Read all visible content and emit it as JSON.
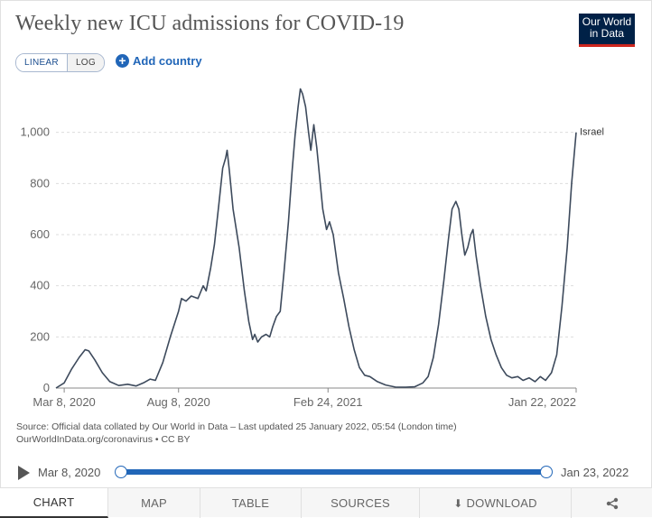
{
  "header": {
    "title": "Weekly new ICU admissions for COVID-19",
    "logo_line1": "Our World",
    "logo_line2": "in Data"
  },
  "controls": {
    "scale_linear": "LINEAR",
    "scale_log": "LOG",
    "scale_selected": "LINEAR",
    "add_country": "Add country"
  },
  "chart_data": {
    "type": "line",
    "title": "Weekly new ICU admissions for COVID-19",
    "xlabel": "",
    "ylabel": "",
    "x_range": [
      "2020-02-26",
      "2022-01-22"
    ],
    "ylim": [
      0,
      1200
    ],
    "yticks": [
      0,
      200,
      400,
      600,
      800,
      1000
    ],
    "ytick_labels": [
      "0",
      "200",
      "400",
      "600",
      "800",
      "1,000"
    ],
    "xticks": [
      "2020-03-08",
      "2020-08-08",
      "2021-02-24",
      "2022-01-22"
    ],
    "xtick_labels": [
      "Mar 8, 2020",
      "Aug 8, 2020",
      "Feb 24, 2021",
      "Jan 22, 2022"
    ],
    "grid": "horizontal-dashed",
    "legend": "end-label",
    "series": [
      {
        "name": "Israel",
        "color": "#3d4a5c",
        "points": [
          [
            "2020-02-26",
            0
          ],
          [
            "2020-03-08",
            20
          ],
          [
            "2020-03-18",
            75
          ],
          [
            "2020-03-28",
            120
          ],
          [
            "2020-04-05",
            150
          ],
          [
            "2020-04-10",
            145
          ],
          [
            "2020-04-18",
            110
          ],
          [
            "2020-04-28",
            60
          ],
          [
            "2020-05-08",
            25
          ],
          [
            "2020-05-20",
            10
          ],
          [
            "2020-06-01",
            15
          ],
          [
            "2020-06-12",
            8
          ],
          [
            "2020-06-22",
            20
          ],
          [
            "2020-07-01",
            35
          ],
          [
            "2020-07-08",
            30
          ],
          [
            "2020-07-18",
            100
          ],
          [
            "2020-07-28",
            200
          ],
          [
            "2020-08-08",
            300
          ],
          [
            "2020-08-12",
            350
          ],
          [
            "2020-08-18",
            340
          ],
          [
            "2020-08-25",
            360
          ],
          [
            "2020-09-03",
            350
          ],
          [
            "2020-09-10",
            400
          ],
          [
            "2020-09-14",
            380
          ],
          [
            "2020-09-20",
            470
          ],
          [
            "2020-09-25",
            560
          ],
          [
            "2020-10-01",
            720
          ],
          [
            "2020-10-06",
            860
          ],
          [
            "2020-10-10",
            900
          ],
          [
            "2020-10-12",
            930
          ],
          [
            "2020-10-15",
            850
          ],
          [
            "2020-10-20",
            700
          ],
          [
            "2020-10-28",
            550
          ],
          [
            "2020-11-04",
            380
          ],
          [
            "2020-11-10",
            260
          ],
          [
            "2020-11-15",
            190
          ],
          [
            "2020-11-18",
            210
          ],
          [
            "2020-11-22",
            180
          ],
          [
            "2020-11-27",
            200
          ],
          [
            "2020-12-03",
            210
          ],
          [
            "2020-12-08",
            200
          ],
          [
            "2020-12-12",
            240
          ],
          [
            "2020-12-17",
            280
          ],
          [
            "2020-12-22",
            300
          ],
          [
            "2020-12-27",
            450
          ],
          [
            "2021-01-02",
            650
          ],
          [
            "2021-01-07",
            850
          ],
          [
            "2021-01-11",
            990
          ],
          [
            "2021-01-15",
            1100
          ],
          [
            "2021-01-18",
            1170
          ],
          [
            "2021-01-21",
            1150
          ],
          [
            "2021-01-25",
            1100
          ],
          [
            "2021-01-29",
            1000
          ],
          [
            "2021-02-01",
            930
          ],
          [
            "2021-02-05",
            1030
          ],
          [
            "2021-02-09",
            940
          ],
          [
            "2021-02-13",
            820
          ],
          [
            "2021-02-17",
            700
          ],
          [
            "2021-02-22",
            620
          ],
          [
            "2021-02-26",
            650
          ],
          [
            "2021-03-03",
            600
          ],
          [
            "2021-03-10",
            450
          ],
          [
            "2021-03-17",
            350
          ],
          [
            "2021-03-24",
            240
          ],
          [
            "2021-03-31",
            150
          ],
          [
            "2021-04-07",
            80
          ],
          [
            "2021-04-14",
            50
          ],
          [
            "2021-04-21",
            45
          ],
          [
            "2021-05-01",
            25
          ],
          [
            "2021-05-12",
            12
          ],
          [
            "2021-05-25",
            4
          ],
          [
            "2021-06-08",
            3
          ],
          [
            "2021-06-20",
            5
          ],
          [
            "2021-07-01",
            20
          ],
          [
            "2021-07-08",
            45
          ],
          [
            "2021-07-15",
            120
          ],
          [
            "2021-07-22",
            250
          ],
          [
            "2021-07-29",
            420
          ],
          [
            "2021-08-04",
            580
          ],
          [
            "2021-08-09",
            700
          ],
          [
            "2021-08-14",
            730
          ],
          [
            "2021-08-18",
            700
          ],
          [
            "2021-08-22",
            600
          ],
          [
            "2021-08-26",
            520
          ],
          [
            "2021-08-30",
            550
          ],
          [
            "2021-09-03",
            600
          ],
          [
            "2021-09-06",
            620
          ],
          [
            "2021-09-10",
            520
          ],
          [
            "2021-09-16",
            400
          ],
          [
            "2021-09-23",
            280
          ],
          [
            "2021-09-30",
            190
          ],
          [
            "2021-10-07",
            130
          ],
          [
            "2021-10-14",
            80
          ],
          [
            "2021-10-21",
            50
          ],
          [
            "2021-10-28",
            40
          ],
          [
            "2021-11-05",
            45
          ],
          [
            "2021-11-12",
            30
          ],
          [
            "2021-11-20",
            40
          ],
          [
            "2021-11-28",
            25
          ],
          [
            "2021-12-05",
            45
          ],
          [
            "2021-12-12",
            30
          ],
          [
            "2021-12-20",
            60
          ],
          [
            "2021-12-27",
            130
          ],
          [
            "2022-01-03",
            320
          ],
          [
            "2022-01-10",
            550
          ],
          [
            "2022-01-16",
            800
          ],
          [
            "2022-01-22",
            1000
          ]
        ]
      }
    ]
  },
  "source": {
    "line1": "Source: Official data collated by Our World in Data – Last updated 25 January 2022, 05:54 (London time)",
    "line2": "OurWorldInData.org/coronavirus • CC BY"
  },
  "timeline": {
    "start": "Mar 8, 2020",
    "end": "Jan 23, 2022"
  },
  "tabs": [
    {
      "label": "CHART",
      "active": true
    },
    {
      "label": "MAP"
    },
    {
      "label": "TABLE"
    },
    {
      "label": "SOURCES"
    },
    {
      "label": "DOWNLOAD"
    }
  ],
  "colors": {
    "line": "#3d4a5c",
    "accent": "#2166b8",
    "grid": "#dddddd"
  }
}
